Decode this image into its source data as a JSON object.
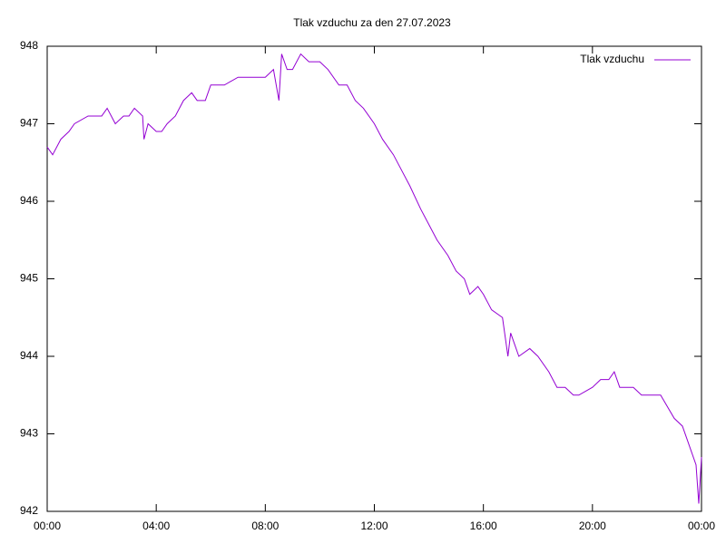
{
  "chart_data": {
    "type": "line",
    "title": "Tlak vzduchu za den 27.07.2023",
    "x": [
      0,
      0.2,
      0.5,
      0.8,
      1,
      1.5,
      2,
      2.2,
      2.5,
      2.8,
      3,
      3.2,
      3.5,
      3.55,
      3.7,
      4,
      4.2,
      4.4,
      4.7,
      5,
      5.3,
      5.5,
      5.8,
      6,
      6.5,
      7,
      7.5,
      8,
      8.3,
      8.5,
      8.6,
      8.8,
      9,
      9.3,
      9.6,
      10,
      10.3,
      10.7,
      11,
      11.3,
      11.6,
      12,
      12.3,
      12.7,
      13,
      13.3,
      13.7,
      14,
      14.3,
      14.7,
      15,
      15.3,
      15.5,
      15.8,
      16,
      16.3,
      16.7,
      16.9,
      17,
      17.3,
      17.7,
      18,
      18.4,
      18.7,
      19,
      19.3,
      19.5,
      20,
      20.3,
      20.6,
      20.8,
      21,
      21.5,
      21.8,
      22,
      22.5,
      23,
      23.3,
      23.6,
      23.8,
      23.9,
      24
    ],
    "series": [
      {
        "name": "Tlak vzduchu",
        "color": "#9400d3",
        "values": [
          946.7,
          946.6,
          946.8,
          946.9,
          947.0,
          947.1,
          947.1,
          947.2,
          947.0,
          947.1,
          947.1,
          947.2,
          947.1,
          946.8,
          947.0,
          946.9,
          946.9,
          947.0,
          947.1,
          947.3,
          947.4,
          947.3,
          947.3,
          947.5,
          947.5,
          947.6,
          947.6,
          947.6,
          947.7,
          947.3,
          947.9,
          947.7,
          947.7,
          947.9,
          947.8,
          947.8,
          947.7,
          947.5,
          947.5,
          947.3,
          947.2,
          947.0,
          946.8,
          946.6,
          946.4,
          946.2,
          945.9,
          945.7,
          945.5,
          945.3,
          945.1,
          945.0,
          944.8,
          944.9,
          944.8,
          944.6,
          944.5,
          944.0,
          944.3,
          944.0,
          944.1,
          944.0,
          943.8,
          943.6,
          943.6,
          943.5,
          943.5,
          943.6,
          943.7,
          943.7,
          943.8,
          943.6,
          943.6,
          943.5,
          943.5,
          943.5,
          943.2,
          943.1,
          942.8,
          942.6,
          942.1,
          942.7
        ]
      }
    ],
    "xlim": [
      0,
      24
    ],
    "xticks": [
      {
        "value": 0,
        "label": "00:00"
      },
      {
        "value": 4,
        "label": "04:00"
      },
      {
        "value": 8,
        "label": "08:00"
      },
      {
        "value": 12,
        "label": "12:00"
      },
      {
        "value": 16,
        "label": "16:00"
      },
      {
        "value": 20,
        "label": "20:00"
      },
      {
        "value": 24,
        "label": "00:00"
      }
    ],
    "ylim": [
      942,
      948
    ],
    "yticks": [
      942,
      943,
      944,
      945,
      946,
      947,
      948
    ],
    "grid": false,
    "legend": "top-right"
  }
}
